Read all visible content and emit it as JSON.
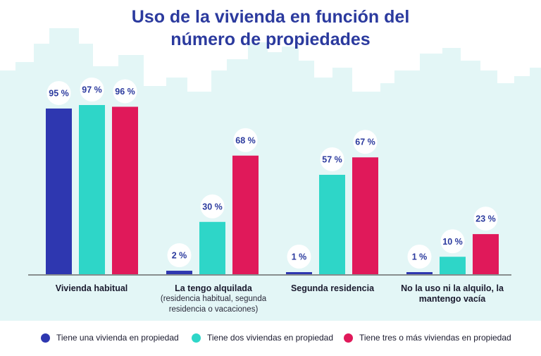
{
  "title_lines": [
    "Uso de la vivienda en función del",
    "número de propiedades"
  ],
  "colors": {
    "title": "#2b3a9e",
    "series_1": "#2e37b0",
    "series_2": "#2ed6c8",
    "series_3": "#e0195a",
    "background_shapes": "#e3f6f6",
    "value_bubble": "#ffffff",
    "value_text": "#2b3a9e"
  },
  "chart_data": {
    "type": "bar",
    "title": "Uso de la vivienda en función del número de propiedades",
    "categories": [
      {
        "main": "Vivienda habitual",
        "sub": ""
      },
      {
        "main": "La tengo alquilada",
        "sub": "(residencia habitual, segunda residencia o vacaciones)"
      },
      {
        "main": "Segunda residencia",
        "sub": ""
      },
      {
        "main": "No la uso ni la alquilo, la mantengo vacía",
        "sub": ""
      }
    ],
    "series": [
      {
        "name": "Tiene una vivienda en propiedad",
        "values": [
          95,
          2,
          1,
          1
        ],
        "labels": [
          "95 %",
          "2 %",
          "1 %",
          "1 %"
        ]
      },
      {
        "name": "Tiene dos viviendas en propiedad",
        "values": [
          97,
          30,
          57,
          10
        ],
        "labels": [
          "97 %",
          "30 %",
          "57 %",
          "10 %"
        ]
      },
      {
        "name": "Tiene tres o más viviendas en propiedad",
        "values": [
          96,
          68,
          67,
          23
        ],
        "labels": [
          "96 %",
          "68 %",
          "67 %",
          "23 %"
        ]
      }
    ],
    "ylim": [
      0,
      100
    ],
    "grid": false,
    "legend_position": "bottom"
  }
}
